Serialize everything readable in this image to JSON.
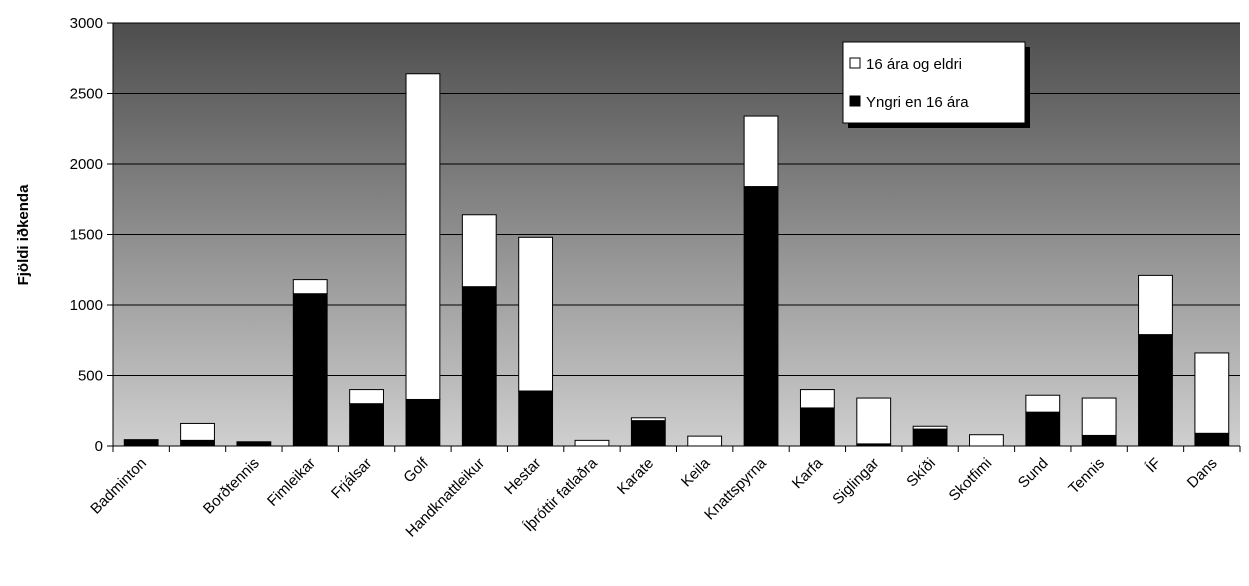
{
  "chart_data": {
    "type": "stacked_bar",
    "y_label": "Fjöldi iðkenda",
    "categories": [
      "Badminton",
      null,
      "Borðtennis",
      "Fimleikar",
      "Frjálsar",
      "Golf",
      "Handknattleikur",
      "Hestar",
      "Íþróttir fatlaðra",
      "Karate",
      "Keila",
      "Knattspyrna",
      "Karfa",
      "Siglingar",
      "Skíði",
      "Skotfimi",
      "Sund",
      "Tennis",
      "ÍF",
      "Dans"
    ],
    "series": [
      {
        "name": "Yngri en 16 ára",
        "color": "#000000",
        "values": [
          45,
          40,
          30,
          1080,
          300,
          330,
          1130,
          390,
          0,
          180,
          0,
          1840,
          270,
          15,
          120,
          0,
          240,
          75,
          790,
          90
        ]
      },
      {
        "name": "16 ára og eldri",
        "color": "#ffffff",
        "values": [
          0,
          120,
          0,
          100,
          100,
          2310,
          510,
          1090,
          40,
          20,
          70,
          500,
          130,
          325,
          20,
          80,
          120,
          265,
          420,
          570
        ]
      }
    ],
    "ylim": [
      0,
      3000
    ],
    "yticks": [
      0,
      500,
      1000,
      1500,
      2000,
      2500,
      3000
    ],
    "grid": true,
    "legend": "top-right"
  }
}
